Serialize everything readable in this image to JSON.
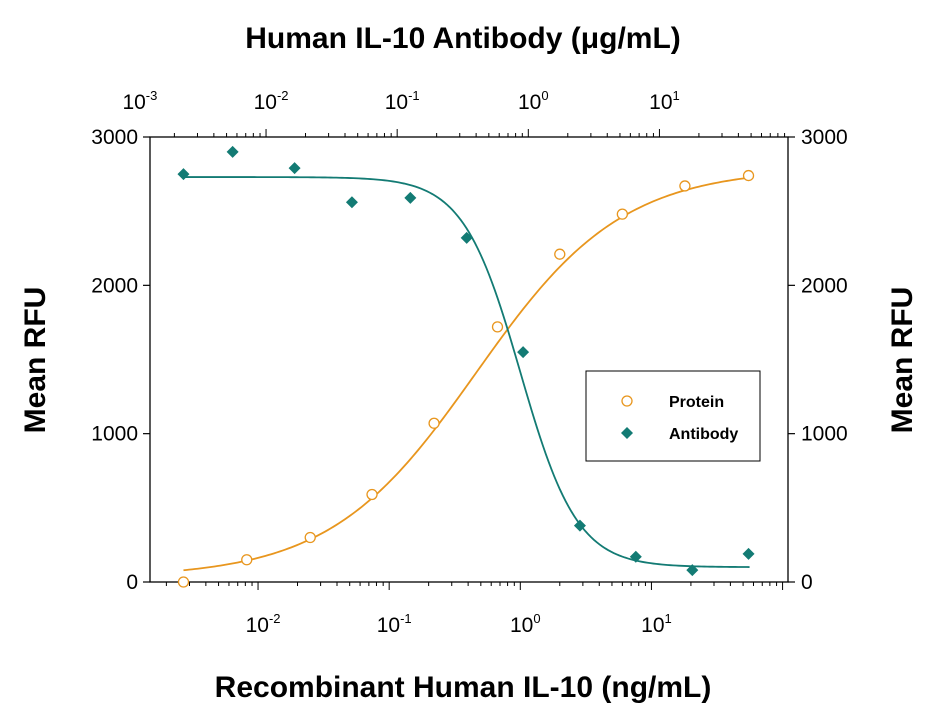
{
  "chart_data": {
    "type": "scatter",
    "title": "Human IL-10 Antibody (μg/mL)",
    "xlabel": "Recombinant Human IL-10 (ng/mL)",
    "ylabel_left": "Mean RFU",
    "ylabel_right": "Mean RFU",
    "x_scale": "log",
    "xlim": [
      0.0015,
      110
    ],
    "ylim": [
      0,
      3000
    ],
    "y_ticks": [
      "0",
      "1000",
      "2000",
      "3000"
    ],
    "x_ticks_bottom": [
      {
        "value": 0.01,
        "base": "10",
        "exp": "-2"
      },
      {
        "value": 0.1,
        "base": "10",
        "exp": "-1"
      },
      {
        "value": 1,
        "base": "10",
        "exp": "0"
      },
      {
        "value": 10,
        "base": "10",
        "exp": "1"
      }
    ],
    "x_ticks_top": [
      {
        "value": 0.001,
        "base": "10",
        "exp": "-3"
      },
      {
        "value": 0.01,
        "base": "10",
        "exp": "-2"
      },
      {
        "value": 0.1,
        "base": "10",
        "exp": "-1"
      },
      {
        "value": 1,
        "base": "10",
        "exp": "0"
      },
      {
        "value": 10,
        "base": "10",
        "exp": "1"
      }
    ],
    "legend": {
      "position": "right"
    },
    "series": [
      {
        "name": "Protein",
        "color": "#E8961E",
        "marker": "open-circle",
        "x": [
          0.0027,
          0.0082,
          0.025,
          0.074,
          0.22,
          0.67,
          2.0,
          6.0,
          18,
          55
        ],
        "y": [
          0,
          150,
          300,
          590,
          1070,
          1720,
          2210,
          2480,
          2670,
          2740
        ],
        "fit": {
          "bottom": 30,
          "top": 2790,
          "ec50": 0.46,
          "hill": 0.78
        }
      },
      {
        "name": "Antibody",
        "color": "#137B74",
        "marker": "diamond",
        "x": [
          0.0027,
          0.0064,
          0.019,
          0.052,
          0.145,
          0.39,
          1.05,
          2.85,
          7.6,
          20.5,
          55
        ],
        "y": [
          2750,
          2900,
          2790,
          2560,
          2590,
          2320,
          1550,
          380,
          170,
          80,
          190
        ],
        "fit": {
          "bottom": 100,
          "top": 2730,
          "ec50": 1.0,
          "hill": 2.0
        }
      }
    ]
  }
}
